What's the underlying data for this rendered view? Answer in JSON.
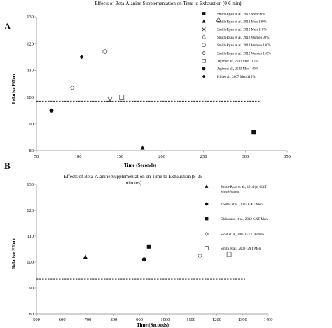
{
  "chart_data": [
    {
      "type": "scatter",
      "panel_label": "A",
      "title": "Effects of Beta-Alanine Supplementation on Time to Exhaustion (0-6 min)",
      "xlabel": "Time (Seconds)",
      "ylabel": "Relative Effect",
      "xlim": [
        50,
        350
      ],
      "ylim": [
        80,
        130
      ],
      "xticks": [
        "50",
        "100",
        "150",
        "200",
        "250",
        "300",
        "350"
      ],
      "yticks": [
        "80",
        "90",
        "100",
        "110",
        "120",
        "130"
      ],
      "reference_line_y": 98.5,
      "grid": false,
      "legend_position": "right",
      "series": [
        {
          "name": "Smith-Ryan et al., 2012 Men 90%",
          "marker": "filled-square",
          "x": 310,
          "y": 87
        },
        {
          "name": "Smith-Ryan et al., 2012 Men 100%",
          "marker": "filled-triangle",
          "x": 177,
          "y": 81
        },
        {
          "name": "Smith-Ryan et al., 2012 Men 110%",
          "marker": "x",
          "x": 138,
          "y": 99
        },
        {
          "name": "Smith-Ryan et al., 2012 Women 90%",
          "marker": "open-triangle",
          "x": 268,
          "y": 129
        },
        {
          "name": "Smith-Ryan et al., 2012 Women 100%",
          "marker": "open-circle",
          "x": 132,
          "y": 117
        },
        {
          "name": "Smith-Ryan et al., 2012 Women 110%",
          "marker": "open-diamond",
          "x": 93,
          "y": 103.5
        },
        {
          "name": "Jagim et al., 2013 Men 115%",
          "marker": "open-square",
          "x": 152,
          "y": 100
        },
        {
          "name": "Jagim et al., 2013 Men 140%",
          "marker": "filled-circle",
          "x": 68,
          "y": 95
        },
        {
          "name": "Hill et al., 2007 Men 110%",
          "marker": "filled-diamond",
          "x": 104,
          "y": 115
        }
      ]
    },
    {
      "type": "scatter",
      "panel_label": "B",
      "title_lines": [
        "Effects of Beta-Alanine Supplementation on Time to Exhaustion (8-25",
        "minutes)"
      ],
      "xlabel": "Time (Seconds)",
      "ylabel": "Relative Effect",
      "xlim": [
        500,
        1400
      ],
      "ylim": [
        80,
        130
      ],
      "xticks": [
        "500",
        "600",
        "700",
        "800",
        "900",
        "1000",
        "1100",
        "1200",
        "1300",
        "1400"
      ],
      "yticks": [
        "80",
        "90",
        "100",
        "110",
        "120",
        "130"
      ],
      "reference_line_y": 93.5,
      "grid": false,
      "legend_position": "right",
      "series": [
        {
          "name_lines": [
            "Smith-Ryan et al., 2014 (a) GXT",
            "Men/Women"
          ],
          "marker": "filled-triangle",
          "x": 690,
          "y": 102
        },
        {
          "name_lines": [
            "Zoeller et al., 2007 GXT Men"
          ],
          "marker": "filled-circle",
          "x": 918,
          "y": 101
        },
        {
          "name_lines": [
            "Ghiasvand et al., 2012 GXT Men"
          ],
          "marker": "filled-square",
          "x": 937,
          "y": 106
        },
        {
          "name_lines": [
            "Stout et al., 2007 GXT Women"
          ],
          "marker": "open-diamond",
          "x": 1135,
          "y": 102.5
        },
        {
          "name_lines": [
            "Smith et al., 2009 GXT Men"
          ],
          "marker": "open-square",
          "x": 1248,
          "y": 103
        }
      ]
    }
  ]
}
